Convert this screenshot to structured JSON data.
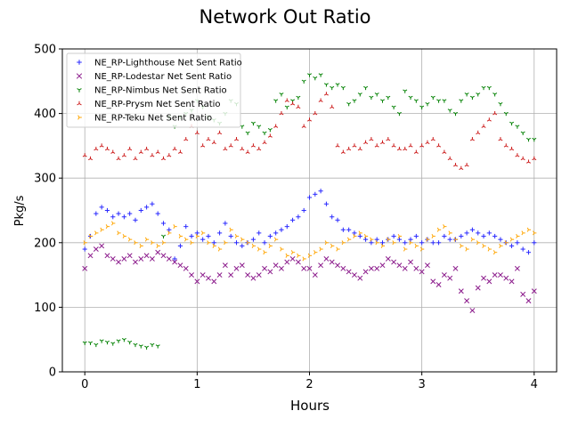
{
  "chart_data": {
    "type": "scatter",
    "title": "Network Out Ratio",
    "xlabel": "Hours",
    "ylabel": "Pkg/s",
    "xlim": [
      -0.2,
      4.2
    ],
    "ylim": [
      0,
      500
    ],
    "xticks": [
      "0",
      "1",
      "2",
      "3",
      "4"
    ],
    "yticks": [
      "0",
      "100",
      "200",
      "300",
      "400",
      "500"
    ],
    "grid": true,
    "legend_position": "top-left",
    "x_step_hours": 0.05,
    "series": [
      {
        "name": "NE_RP-Lighthouse Net Sent Ratio",
        "marker": "+",
        "color": "#2a2aff",
        "values": [
          190,
          210,
          245,
          255,
          250,
          240,
          245,
          240,
          245,
          235,
          250,
          255,
          260,
          245,
          230,
          220,
          175,
          195,
          225,
          210,
          215,
          205,
          210,
          200,
          215,
          230,
          210,
          200,
          195,
          200,
          205,
          215,
          200,
          210,
          215,
          220,
          225,
          235,
          240,
          250,
          270,
          275,
          280,
          260,
          240,
          235,
          220,
          220,
          215,
          210,
          205,
          200,
          205,
          200,
          205,
          210,
          205,
          200,
          205,
          210,
          200,
          205,
          200,
          200,
          210,
          205,
          205,
          210,
          215,
          220,
          215,
          210,
          215,
          210,
          205,
          200,
          195,
          200,
          190,
          185,
          200
        ]
      },
      {
        "name": "NE_RP-Lodestar Net Sent Ratio",
        "marker": "x",
        "color": "#8b1a8b",
        "values": [
          160,
          180,
          190,
          195,
          180,
          175,
          170,
          175,
          180,
          170,
          175,
          180,
          175,
          185,
          180,
          175,
          170,
          165,
          160,
          150,
          140,
          150,
          145,
          140,
          150,
          165,
          150,
          160,
          165,
          150,
          145,
          150,
          160,
          155,
          165,
          160,
          170,
          175,
          170,
          160,
          160,
          150,
          165,
          175,
          170,
          165,
          160,
          155,
          150,
          145,
          155,
          160,
          160,
          165,
          175,
          170,
          165,
          160,
          170,
          160,
          155,
          165,
          140,
          135,
          150,
          145,
          160,
          125,
          110,
          95,
          130,
          145,
          140,
          150,
          150,
          145,
          140,
          160,
          120,
          110,
          125
        ]
      },
      {
        "name": "NE_RP-Nimbus Net Sent Ratio",
        "marker": "1",
        "color": "#008000",
        "values": [
          45,
          45,
          42,
          48,
          46,
          44,
          48,
          50,
          46,
          42,
          40,
          38,
          42,
          40,
          210,
          395,
          380,
          395,
          400,
          405,
          420,
          410,
          395,
          390,
          385,
          400,
          420,
          415,
          380,
          370,
          385,
          380,
          370,
          375,
          420,
          430,
          410,
          420,
          425,
          450,
          460,
          455,
          460,
          445,
          440,
          445,
          440,
          415,
          420,
          430,
          440,
          425,
          430,
          420,
          425,
          410,
          400,
          435,
          425,
          420,
          410,
          415,
          425,
          420,
          420,
          405,
          400,
          420,
          430,
          425,
          430,
          440,
          440,
          430,
          415,
          400,
          385,
          380,
          370,
          360,
          360
        ]
      },
      {
        "name": "NE_RP-Prysm Net Sent Ratio",
        "marker": "2",
        "color": "#cc1a1a",
        "values": [
          335,
          330,
          345,
          350,
          345,
          340,
          330,
          335,
          345,
          330,
          340,
          345,
          335,
          340,
          330,
          335,
          345,
          340,
          360,
          380,
          370,
          350,
          360,
          355,
          370,
          345,
          350,
          360,
          345,
          340,
          350,
          345,
          355,
          365,
          380,
          400,
          420,
          415,
          410,
          380,
          390,
          400,
          420,
          430,
          410,
          350,
          340,
          345,
          350,
          345,
          355,
          360,
          350,
          355,
          360,
          350,
          345,
          345,
          350,
          340,
          350,
          355,
          360,
          350,
          340,
          330,
          320,
          315,
          320,
          360,
          370,
          380,
          390,
          400,
          360,
          350,
          345,
          335,
          330,
          325,
          330
        ]
      },
      {
        "name": "NE_RP-Teku Net Sent Ratio",
        "marker": "4",
        "color": "#ffa500",
        "values": [
          200,
          210,
          215,
          220,
          225,
          230,
          215,
          210,
          205,
          200,
          195,
          205,
          200,
          195,
          200,
          215,
          225,
          210,
          205,
          200,
          210,
          215,
          200,
          195,
          190,
          200,
          220,
          210,
          205,
          200,
          195,
          190,
          185,
          195,
          205,
          190,
          180,
          185,
          180,
          175,
          180,
          185,
          190,
          200,
          195,
          190,
          200,
          205,
          210,
          215,
          210,
          205,
          200,
          195,
          205,
          200,
          210,
          190,
          200,
          195,
          190,
          205,
          210,
          220,
          225,
          215,
          205,
          195,
          190,
          205,
          200,
          195,
          190,
          185,
          195,
          200,
          205,
          210,
          215,
          220,
          215
        ]
      }
    ]
  }
}
